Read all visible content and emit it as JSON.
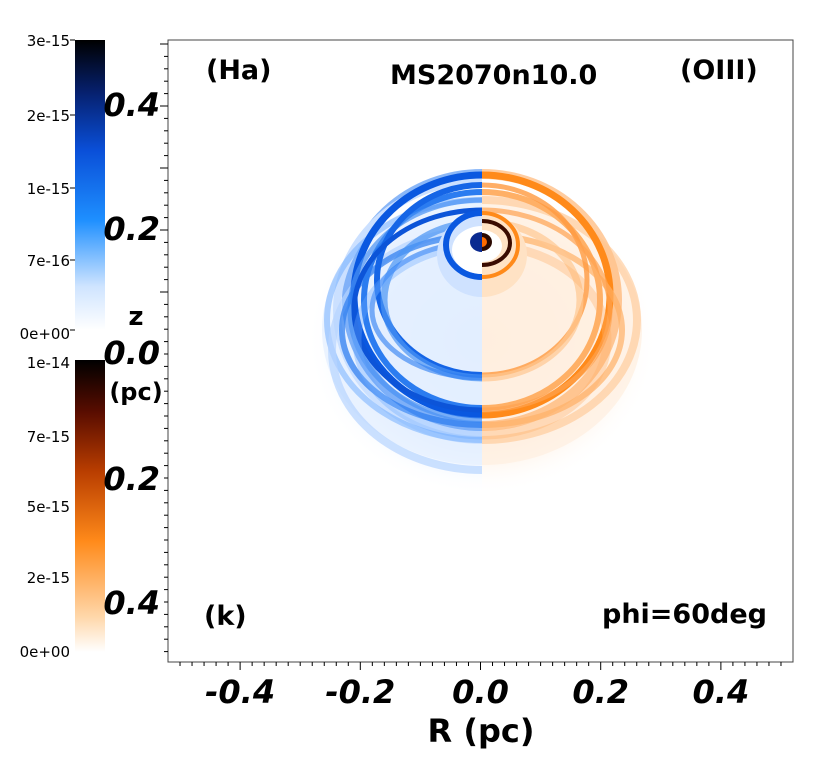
{
  "chart_data": {
    "type": "heatmap",
    "title": "MS2070n10.0",
    "left_label": "(Ha)",
    "right_label": "(OIII)",
    "panel_label": "(k)",
    "view_label": "phi=60deg",
    "xlabel": "R (pc)",
    "xlim": [
      -0.52,
      0.52
    ],
    "x_ticks": [
      "-0.4",
      "-0.2",
      "0.0",
      "0.2",
      "0.4"
    ],
    "x_tick_values": [
      -0.4,
      -0.2,
      0.0,
      0.2,
      0.4
    ],
    "z_axis": {
      "label": "z",
      "unit": "(pc)",
      "upper_ticks": [
        "0.4",
        "0.2",
        "0.0"
      ],
      "lower_ticks": [
        "0.2",
        "0.4"
      ]
    },
    "colorbar_ha": {
      "name": "Ha emission",
      "ticks": [
        "3e-15",
        "2e-15",
        "1e-15",
        "7e-16",
        "0e+00"
      ],
      "colors": [
        "#ffffff",
        "#1e8fff",
        "#0a3fd0",
        "#06155a",
        "#000000"
      ]
    },
    "colorbar_oiii": {
      "name": "OIII emission",
      "ticks": [
        "1e-14",
        "7e-15",
        "5e-15",
        "2e-15",
        "0e+00"
      ],
      "colors": [
        "#ffffff",
        "#ff8a1a",
        "#7a1c00",
        "#000000"
      ]
    }
  }
}
